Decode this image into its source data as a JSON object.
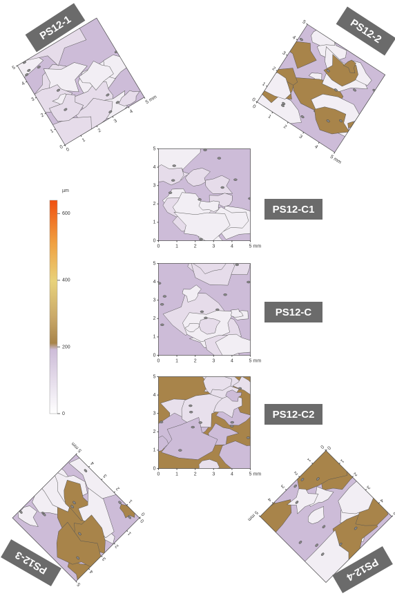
{
  "colorbar": {
    "unit": "µm",
    "lim": [
      0,
      640
    ],
    "ticks": [
      0,
      200,
      400,
      600
    ]
  },
  "axis": {
    "lim": [
      0,
      5
    ],
    "ticks": [
      0,
      1,
      2,
      3,
      4,
      5
    ],
    "unit": "mm"
  },
  "maps": [
    {
      "label": "PS12-1",
      "base": "#cdbcd8",
      "patches": [
        "#f2eef4",
        "#e6dcea"
      ]
    },
    {
      "label": "PS12-2",
      "base": "#cdbcd8",
      "patches": [
        "#f2eef4",
        "#a8844a"
      ]
    },
    {
      "label": "PS12-C1",
      "base": "#cdbcd8",
      "patches": [
        "#f2eef4",
        "#e6dcea"
      ]
    },
    {
      "label": "PS12-C",
      "base": "#cdbcd8",
      "patches": [
        "#f2eef4",
        "#e6dcea"
      ]
    },
    {
      "label": "PS12-C2",
      "base": "#a8844a",
      "patches": [
        "#cdbcd8",
        "#e8e0ec"
      ]
    },
    {
      "label": "PS12-3",
      "base": "#cdbcd8",
      "patches": [
        "#a8844a",
        "#f2eef4"
      ]
    },
    {
      "label": "PS12-4",
      "base": "#cdbcd8",
      "patches": [
        "#a8844a",
        "#f2eef4"
      ]
    }
  ]
}
